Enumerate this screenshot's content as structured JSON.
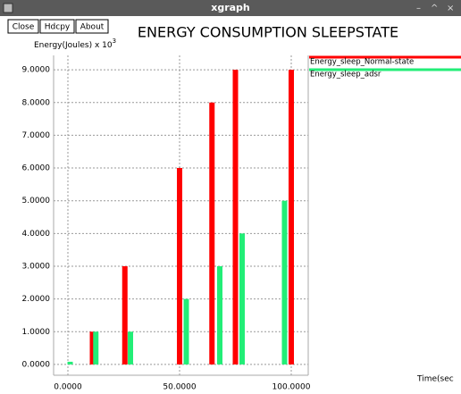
{
  "window": {
    "title": "xgraph",
    "buttons": [
      "Close",
      "Hdcpy",
      "About"
    ]
  },
  "chart_data": {
    "type": "bar",
    "title": "ENERGY CONSUMPTION SLEEPSTATE",
    "ylabel": "Energy(Joules) x 10",
    "ylabel_exponent": "3",
    "xlabel": "Time(sec",
    "xlim": [
      -6.4,
      107.6
    ],
    "ylim": [
      -0.33,
      9.44
    ],
    "xticks": [
      {
        "value": 0,
        "label": "0.0000"
      },
      {
        "value": 50,
        "label": "50.0000"
      },
      {
        "value": 100,
        "label": "100.0000"
      }
    ],
    "yticks": [
      {
        "value": 0,
        "label": "0.0000"
      },
      {
        "value": 1,
        "label": "1.0000"
      },
      {
        "value": 2,
        "label": "2.0000"
      },
      {
        "value": 3,
        "label": "3.0000"
      },
      {
        "value": 4,
        "label": "4.0000"
      },
      {
        "value": 5,
        "label": "5.0000"
      },
      {
        "value": 6,
        "label": "6.0000"
      },
      {
        "value": 7,
        "label": "7.0000"
      },
      {
        "value": 8,
        "label": "8.0000"
      },
      {
        "value": 9,
        "label": "9.0000"
      }
    ],
    "grid": true,
    "series": [
      {
        "name": "Energy_sleep_Normal-state",
        "color": "#ff0000",
        "x": [
          11,
          25.5,
          50,
          64.5,
          75,
          100
        ],
        "values": [
          1,
          3,
          6,
          8,
          9,
          9
        ]
      },
      {
        "name": "Energy_sleep_adsr",
        "color": "#22ee77",
        "x": [
          1,
          12.5,
          28,
          53,
          68,
          78,
          97
        ],
        "values": [
          0,
          1,
          1,
          2,
          3,
          4,
          5
        ]
      }
    ]
  }
}
